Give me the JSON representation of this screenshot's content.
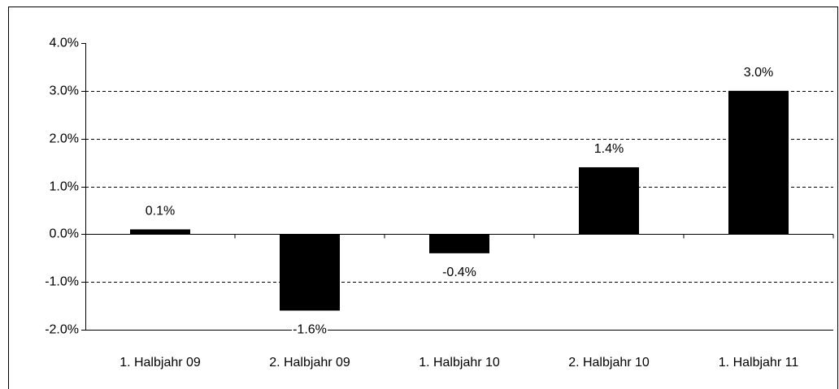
{
  "chart_data": {
    "type": "bar",
    "categories": [
      "1. Halbjahr 09",
      "2. Halbjahr 09",
      "1. Halbjahr 10",
      "2. Halbjahr 10",
      "1. Halbjahr 11"
    ],
    "values": [
      0.1,
      -1.6,
      -0.4,
      1.4,
      3.0
    ],
    "value_labels": [
      "0.1%",
      "-1.6%",
      "-0.4%",
      "1.4%",
      "3.0%"
    ],
    "color": "#000000",
    "ylim": [
      -2,
      4
    ],
    "yticks": [
      {
        "value": -2,
        "label": "-2.0%"
      },
      {
        "value": -1,
        "label": "-1.0%"
      },
      {
        "value": 0,
        "label": "0.0%"
      },
      {
        "value": 1,
        "label": "1.0%"
      },
      {
        "value": 2,
        "label": "2.0%"
      },
      {
        "value": 3,
        "label": "3.0%"
      },
      {
        "value": 4,
        "label": "4.0%"
      }
    ],
    "grid": true
  }
}
